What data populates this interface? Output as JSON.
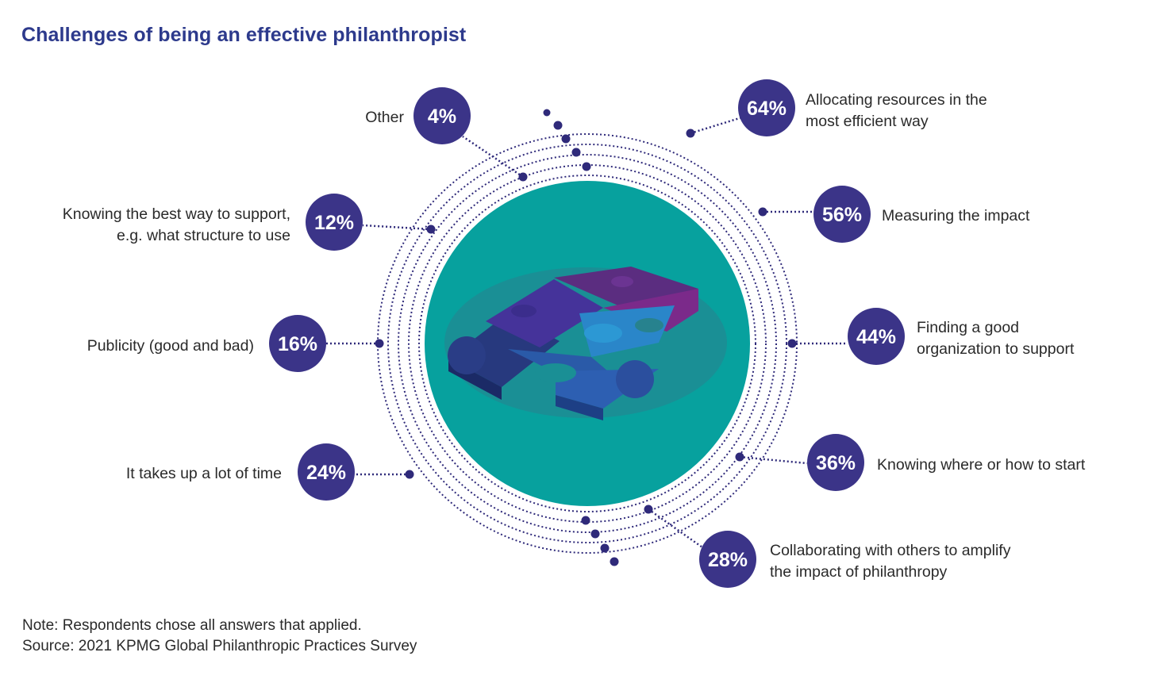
{
  "title": "Challenges of being an effective philanthropist",
  "note": {
    "line1": "Note: Respondents chose all answers that applied.",
    "line2": "Source: 2021 KPMG Global Philanthropic Practices Survey"
  },
  "colors": {
    "accent": "#3b3488",
    "title": "#2d3a8c",
    "teal": "#07a19e",
    "teal_inner": "#1a8f95",
    "dots": "#2f2a7a"
  },
  "chart_data": {
    "type": "radial-callout",
    "title": "Challenges of being an effective philanthropist",
    "unit": "%",
    "categories": [
      "Allocating resources in the most efficient way",
      "Measuring the impact",
      "Finding a good organization to support",
      "Knowing where or how to start",
      "Collaborating with others to amplify the impact of philanthropy",
      "It takes up a lot of time",
      "Publicity (good and bad)",
      "Knowing the best way to support, e.g. what structure to use",
      "Other"
    ],
    "values": [
      64,
      56,
      44,
      36,
      28,
      24,
      16,
      12,
      4
    ],
    "items": [
      {
        "id": "allocating",
        "value": 64,
        "value_label": "64%",
        "label_lines": [
          "Allocating resources in the",
          "most efficient way"
        ]
      },
      {
        "id": "measuring",
        "value": 56,
        "value_label": "56%",
        "label_lines": [
          "Measuring the impact"
        ]
      },
      {
        "id": "finding",
        "value": 44,
        "value_label": "44%",
        "label_lines": [
          "Finding a good",
          "organization to support"
        ]
      },
      {
        "id": "where-to-start",
        "value": 36,
        "value_label": "36%",
        "label_lines": [
          "Knowing where or how to start"
        ]
      },
      {
        "id": "collaborating",
        "value": 28,
        "value_label": "28%",
        "label_lines": [
          "Collaborating with others to amplify",
          "the impact of philanthropy"
        ]
      },
      {
        "id": "time",
        "value": 24,
        "value_label": "24%",
        "label_lines": [
          "It takes up a lot of time"
        ]
      },
      {
        "id": "publicity",
        "value": 16,
        "value_label": "16%",
        "label_lines": [
          "Publicity (good and bad)"
        ]
      },
      {
        "id": "best-way",
        "value": 12,
        "value_label": "12%",
        "label_lines": [
          "Knowing the best way to support,",
          "e.g. what structure to use"
        ]
      },
      {
        "id": "other",
        "value": 4,
        "value_label": "4%",
        "label_lines": [
          "Other"
        ]
      }
    ]
  }
}
